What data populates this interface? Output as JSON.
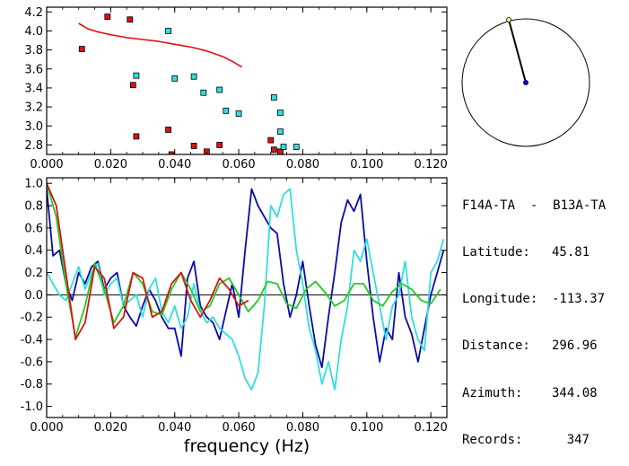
{
  "info": {
    "station_pair": "F14A-TA  -  B13A-TA",
    "rows": [
      {
        "label": "Latitude:",
        "value": "45.81"
      },
      {
        "label": "Longitude:",
        "value": "-113.37"
      },
      {
        "label": "Distance:",
        "value": "296.96"
      },
      {
        "label": "Azimuth:",
        "value": "344.08"
      },
      {
        "label": "Records:",
        "value": "347"
      }
    ]
  },
  "colors": {
    "red": "#dd1111",
    "cyan": "#33dddd",
    "blue": "#0a0aaa",
    "green": "#22cc22",
    "black": "#000000"
  },
  "chart_data": [
    {
      "type": "scatter",
      "title": "",
      "xlabel": "",
      "ylabel": "",
      "xlim": [
        0,
        0.125
      ],
      "ylim": [
        2.7,
        4.25
      ],
      "x_ticks": [
        "0.000",
        "0.020",
        "0.040",
        "0.060",
        "0.080",
        "0.100",
        "0.120"
      ],
      "y_ticks": [
        "2.8",
        "3.0",
        "3.2",
        "3.4",
        "3.6",
        "3.8",
        "4.0",
        "4.2"
      ],
      "series": [
        {
          "color": "red",
          "marker": "square",
          "x": [
            0.011,
            0.019,
            0.026,
            0.027,
            0.028,
            0.038,
            0.039,
            0.046,
            0.05,
            0.054,
            0.07,
            0.071,
            0.073
          ],
          "y": [
            3.81,
            4.15,
            4.12,
            3.43,
            2.89,
            2.96,
            2.7,
            2.79,
            2.73,
            2.8,
            2.85,
            2.75,
            2.73
          ]
        },
        {
          "color": "cyan",
          "marker": "square",
          "x": [
            0.028,
            0.038,
            0.04,
            0.046,
            0.049,
            0.054,
            0.056,
            0.06,
            0.071,
            0.073,
            0.073,
            0.074,
            0.078
          ],
          "y": [
            3.53,
            4.0,
            3.5,
            3.52,
            3.35,
            3.38,
            3.16,
            3.13,
            3.3,
            3.14,
            2.94,
            2.78,
            2.78
          ]
        },
        {
          "color": "red",
          "marker": "line",
          "x": [
            0.01,
            0.013,
            0.016,
            0.02,
            0.025,
            0.03,
            0.035,
            0.04,
            0.045,
            0.05,
            0.055,
            0.058,
            0.061
          ],
          "y": [
            4.08,
            4.02,
            3.99,
            3.96,
            3.93,
            3.91,
            3.89,
            3.86,
            3.83,
            3.79,
            3.73,
            3.68,
            3.62
          ]
        }
      ]
    },
    {
      "type": "line",
      "title": "",
      "xlabel": "frequency (Hz)",
      "ylabel": "",
      "xlim": [
        0,
        0.125
      ],
      "ylim": [
        -1.1,
        1.05
      ],
      "x_ticks": [
        "0.000",
        "0.020",
        "0.040",
        "0.060",
        "0.080",
        "0.100",
        "0.120"
      ],
      "y_ticks": [
        "-1.0",
        "-0.8",
        "-0.6",
        "-0.4",
        "-0.2",
        "0.0",
        "0.2",
        "0.4",
        "0.6",
        "0.8",
        "1.0"
      ],
      "zero_line": true,
      "series": [
        {
          "color": "blue",
          "x": [
            0.0,
            0.002,
            0.004,
            0.006,
            0.008,
            0.01,
            0.012,
            0.014,
            0.016,
            0.018,
            0.02,
            0.022,
            0.024,
            0.026,
            0.028,
            0.03,
            0.032,
            0.034,
            0.036,
            0.038,
            0.04,
            0.042,
            0.044,
            0.046,
            0.048,
            0.05,
            0.052,
            0.054,
            0.056,
            0.058,
            0.06,
            0.062,
            0.064,
            0.066,
            0.068,
            0.07,
            0.072,
            0.074,
            0.076,
            0.078,
            0.08,
            0.082,
            0.084,
            0.086,
            0.088,
            0.09,
            0.092,
            0.094,
            0.096,
            0.098,
            0.1,
            0.102,
            0.104,
            0.106,
            0.108,
            0.11,
            0.112,
            0.114,
            0.116,
            0.118,
            0.12,
            0.122,
            0.124
          ],
          "y": [
            0.95,
            0.35,
            0.4,
            0.1,
            -0.05,
            0.2,
            0.1,
            0.25,
            0.3,
            0.05,
            0.15,
            0.2,
            -0.1,
            -0.2,
            -0.28,
            -0.1,
            0.05,
            -0.05,
            -0.2,
            -0.3,
            -0.3,
            -0.55,
            0.15,
            0.3,
            -0.1,
            -0.2,
            -0.25,
            -0.4,
            -0.15,
            0.1,
            -0.2,
            0.4,
            0.95,
            0.8,
            0.7,
            0.6,
            0.55,
            0.1,
            -0.2,
            0.0,
            0.3,
            -0.1,
            -0.45,
            -0.65,
            -0.2,
            0.2,
            0.65,
            0.85,
            0.75,
            0.9,
            0.3,
            -0.2,
            -0.6,
            -0.3,
            -0.4,
            0.2,
            -0.2,
            -0.35,
            -0.6,
            -0.3,
            0.0,
            0.2,
            0.4
          ]
        },
        {
          "color": "cyan",
          "x": [
            0.0,
            0.002,
            0.004,
            0.006,
            0.008,
            0.01,
            0.012,
            0.014,
            0.016,
            0.018,
            0.02,
            0.022,
            0.024,
            0.026,
            0.028,
            0.03,
            0.032,
            0.034,
            0.036,
            0.038,
            0.04,
            0.042,
            0.044,
            0.046,
            0.048,
            0.05,
            0.052,
            0.054,
            0.056,
            0.058,
            0.06,
            0.062,
            0.064,
            0.066,
            0.068,
            0.07,
            0.072,
            0.074,
            0.076,
            0.078,
            0.08,
            0.082,
            0.084,
            0.086,
            0.088,
            0.09,
            0.092,
            0.094,
            0.096,
            0.098,
            0.1,
            0.102,
            0.104,
            0.106,
            0.108,
            0.11,
            0.112,
            0.114,
            0.116,
            0.118,
            0.12,
            0.122,
            0.124
          ],
          "y": [
            0.2,
            0.1,
            0.0,
            -0.05,
            0.1,
            0.25,
            0.05,
            0.2,
            0.28,
            0.0,
            0.1,
            0.15,
            -0.1,
            -0.05,
            0.0,
            -0.2,
            0.05,
            0.15,
            -0.15,
            -0.25,
            -0.1,
            -0.3,
            -0.2,
            0.1,
            -0.15,
            -0.25,
            -0.2,
            -0.3,
            -0.35,
            -0.4,
            -0.55,
            -0.75,
            -0.85,
            -0.7,
            -0.1,
            0.8,
            0.7,
            0.9,
            0.95,
            0.4,
            0.1,
            -0.3,
            -0.5,
            -0.8,
            -0.6,
            -0.85,
            -0.4,
            -0.1,
            0.4,
            0.3,
            0.5,
            0.2,
            -0.1,
            -0.4,
            -0.1,
            0.0,
            0.3,
            -0.2,
            -0.4,
            -0.5,
            0.2,
            0.3,
            0.5
          ]
        },
        {
          "color": "green",
          "x": [
            0.0,
            0.003,
            0.006,
            0.009,
            0.012,
            0.015,
            0.018,
            0.021,
            0.024,
            0.027,
            0.03,
            0.033,
            0.036,
            0.039,
            0.042,
            0.045,
            0.048,
            0.051,
            0.054,
            0.057,
            0.06,
            0.063,
            0.066,
            0.069,
            0.072,
            0.075,
            0.078,
            0.081,
            0.084,
            0.087,
            0.09,
            0.093,
            0.096,
            0.099,
            0.102,
            0.105,
            0.108,
            0.111,
            0.114,
            0.117,
            0.12,
            0.123
          ],
          "y": [
            1.0,
            0.7,
            0.1,
            -0.38,
            -0.1,
            0.28,
            0.05,
            -0.25,
            -0.1,
            0.2,
            0.1,
            -0.15,
            -0.18,
            0.05,
            0.2,
            0.05,
            -0.15,
            -0.1,
            0.1,
            0.15,
            0.0,
            -0.15,
            -0.05,
            0.12,
            0.1,
            -0.08,
            -0.12,
            0.05,
            0.12,
            0.02,
            -0.1,
            -0.05,
            0.1,
            0.1,
            -0.05,
            -0.1,
            0.03,
            0.1,
            0.05,
            -0.05,
            -0.08,
            0.05
          ]
        },
        {
          "color": "red",
          "x": [
            0.0,
            0.003,
            0.006,
            0.009,
            0.012,
            0.015,
            0.018,
            0.021,
            0.024,
            0.027,
            0.03,
            0.033,
            0.036,
            0.039,
            0.042,
            0.045,
            0.048,
            0.051,
            0.054,
            0.057,
            0.06,
            0.063
          ],
          "y": [
            1.0,
            0.8,
            0.2,
            -0.4,
            -0.25,
            0.25,
            0.15,
            -0.3,
            -0.2,
            0.2,
            0.15,
            -0.2,
            -0.15,
            0.1,
            0.2,
            -0.05,
            -0.2,
            -0.05,
            0.15,
            0.05,
            -0.1,
            -0.05
          ]
        }
      ]
    }
  ]
}
